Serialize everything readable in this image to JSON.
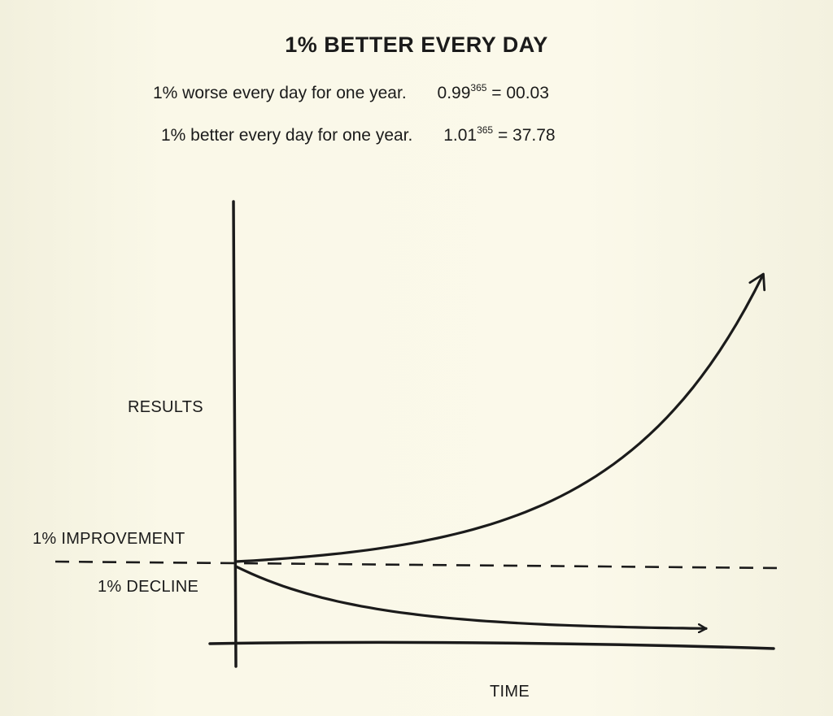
{
  "title": "1% BETTER EVERY DAY",
  "equations": [
    {
      "label": "1% worse every day for one year.",
      "base": "0.99",
      "exponent": "365",
      "result": "= 00.03"
    },
    {
      "label": "1% better every day for one year.",
      "base": "1.01",
      "exponent": "365",
      "result": "= 37.78"
    }
  ],
  "chart_data": {
    "type": "line",
    "xlabel": "TIME",
    "ylabel": "RESULTS",
    "ylim": [
      0,
      40
    ],
    "series": [
      {
        "name": "1% IMPROVEMENT",
        "x": [
          0,
          61,
          122,
          183,
          243,
          304,
          365
        ],
        "values": [
          1.0,
          1.84,
          3.37,
          6.18,
          11.2,
          20.6,
          37.78
        ]
      },
      {
        "name": "1% DECLINE",
        "x": [
          0,
          61,
          122,
          183,
          243,
          304,
          365
        ],
        "values": [
          1.0,
          0.54,
          0.29,
          0.16,
          0.09,
          0.05,
          0.03
        ]
      }
    ],
    "reference_line": {
      "value": 1.0,
      "style": "dashed"
    },
    "colors": {
      "line": "#1b1b1b",
      "background": "#f8f6e6"
    }
  }
}
